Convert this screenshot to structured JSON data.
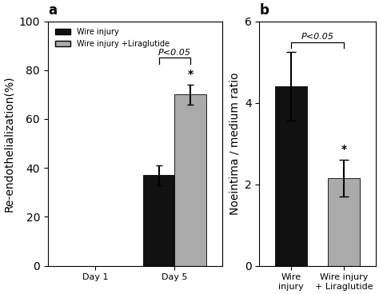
{
  "chart_data": [
    {
      "type": "bar",
      "title": "a",
      "ylabel": "Re-endothelialization(%)",
      "categories": [
        "Day 1",
        "Day 5"
      ],
      "series": [
        {
          "name": "Wire injury",
          "color": "#111111",
          "values": [
            0.0,
            37.0
          ],
          "errors": [
            null,
            4.0
          ]
        },
        {
          "name": "Wire injury +Liraglutide",
          "color": "#aaaaaa",
          "values": [
            null,
            70.0
          ],
          "errors": [
            null,
            4.0
          ]
        }
      ],
      "ylim": [
        0,
        100
      ],
      "yticks": [
        0,
        20,
        40,
        60,
        80,
        100
      ],
      "legend": "upper left",
      "annotations": [
        {
          "text": "*",
          "category": "Day 5",
          "series": "Wire injury +Liraglutide"
        },
        {
          "text": "P<0.05",
          "category": "Day 5",
          "between": [
            "Wire injury",
            "Wire injury +Liraglutide"
          ]
        }
      ]
    },
    {
      "type": "bar",
      "title": "b",
      "ylabel": "Noeintima / medium ratio",
      "categories": [
        "Wire\ninjury",
        "Wire injury\n+ Liraglutide"
      ],
      "values": [
        4.4,
        2.15
      ],
      "errors": [
        0.85,
        0.45
      ],
      "colors": [
        "#111111",
        "#aaaaaa"
      ],
      "ylim": [
        0,
        6
      ],
      "yticks": [
        0,
        2,
        4,
        6
      ],
      "annotations": [
        {
          "text": "*",
          "category": "Wire injury\n+ Liraglutide"
        },
        {
          "text": "P<0.05",
          "between": [
            "Wire\ninjury",
            "Wire injury\n+ Liraglutide"
          ]
        }
      ]
    }
  ]
}
